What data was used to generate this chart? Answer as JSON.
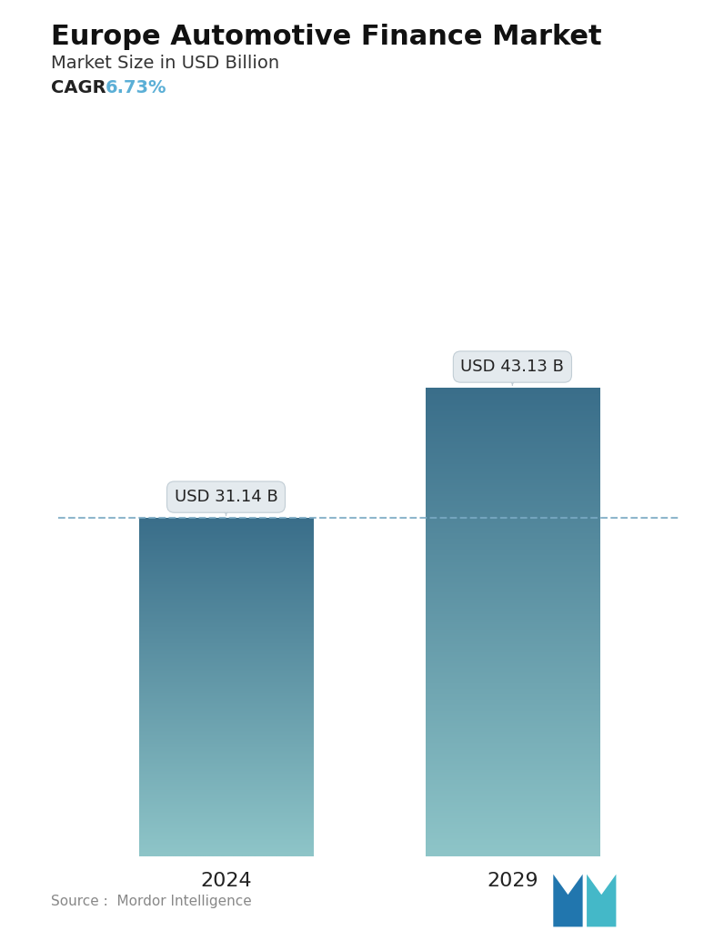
{
  "title": "Europe Automotive Finance Market",
  "subtitle": "Market Size in USD Billion",
  "cagr_label": "CAGR",
  "cagr_value": "6.73%",
  "cagr_color": "#5bafd6",
  "categories": [
    "2024",
    "2029"
  ],
  "values": [
    31.14,
    43.13
  ],
  "value_labels": [
    "USD 31.14 B",
    "USD 43.13 B"
  ],
  "bar_color_top": "#3a6e8a",
  "bar_color_bottom": "#8ec5c8",
  "bar_width": 0.28,
  "dashed_line_y": 31.14,
  "dashed_line_color": "#7aaac4",
  "source_text": "Source :  Mordor Intelligence",
  "source_color": "#888888",
  "background_color": "#ffffff",
  "title_fontsize": 22,
  "subtitle_fontsize": 14,
  "cagr_fontsize": 14,
  "tick_fontsize": 16,
  "label_fontsize": 13,
  "ylim": [
    0,
    52
  ],
  "tooltip_bg": "#e4eaee",
  "tooltip_border": "#c0ccd4"
}
